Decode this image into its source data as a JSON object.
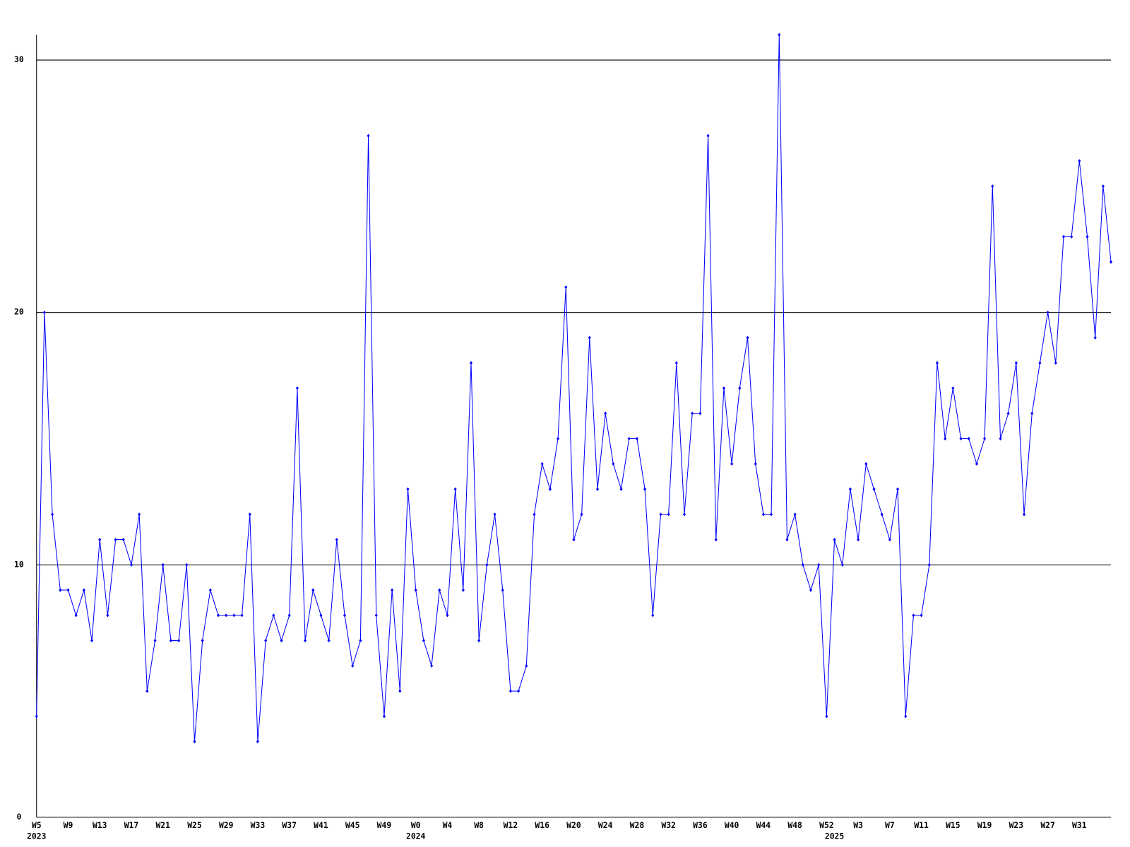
{
  "chart_data": {
    "type": "line",
    "categories": [
      "W5",
      null,
      null,
      null,
      "W9",
      null,
      null,
      null,
      "W13",
      null,
      null,
      null,
      "W17",
      null,
      null,
      null,
      "W21",
      null,
      null,
      null,
      "W25",
      null,
      null,
      null,
      "W29",
      null,
      null,
      null,
      "W33",
      null,
      null,
      null,
      "W37",
      null,
      null,
      null,
      "W41",
      null,
      null,
      null,
      "W45",
      null,
      null,
      null,
      "W49",
      null,
      null,
      null,
      "W0",
      null,
      null,
      null,
      "W4",
      null,
      null,
      null,
      "W8",
      null,
      null,
      null,
      "W12",
      null,
      null,
      null,
      "W16",
      null,
      null,
      null,
      "W20",
      null,
      null,
      null,
      "W24",
      null,
      null,
      null,
      "W28",
      null,
      null,
      null,
      "W32",
      null,
      null,
      null,
      "W36",
      null,
      null,
      null,
      "W40",
      null,
      null,
      null,
      "W44",
      null,
      null,
      null,
      "W48",
      null,
      null,
      null,
      "W52",
      null,
      null,
      null,
      "W3",
      null,
      null,
      null,
      "W7",
      null,
      null,
      null,
      "W11",
      null,
      null,
      null,
      "W15",
      null,
      null,
      null,
      "W19",
      null,
      null,
      null,
      "W23",
      null,
      null,
      null,
      "W27",
      null,
      null,
      null,
      "W31",
      null,
      null,
      null,
      null
    ],
    "years": [
      "2023",
      null,
      null,
      null,
      null,
      null,
      null,
      null,
      null,
      null,
      null,
      null,
      null,
      null,
      null,
      null,
      null,
      null,
      null,
      null,
      null,
      null,
      null,
      null,
      null,
      null,
      null,
      null,
      null,
      null,
      null,
      null,
      null,
      null,
      null,
      null,
      null,
      null,
      null,
      null,
      null,
      null,
      null,
      null,
      null,
      null,
      null,
      null,
      "2024",
      null,
      null,
      null,
      null,
      null,
      null,
      null,
      null,
      null,
      null,
      null,
      null,
      null,
      null,
      null,
      null,
      null,
      null,
      null,
      null,
      null,
      null,
      null,
      null,
      null,
      null,
      null,
      null,
      null,
      null,
      null,
      null,
      null,
      null,
      null,
      null,
      null,
      null,
      null,
      null,
      null,
      null,
      null,
      null,
      null,
      null,
      null,
      null,
      null,
      null,
      null,
      null,
      "2025",
      null,
      null,
      null,
      null,
      null,
      null,
      null,
      null,
      null,
      null,
      null,
      null,
      null,
      null,
      null,
      null,
      null,
      null,
      null,
      null,
      null,
      null,
      null,
      null,
      null,
      null,
      null,
      null,
      null,
      null,
      null,
      null,
      null,
      null,
      null
    ],
    "values": [
      4,
      20,
      12,
      9,
      9,
      8,
      9,
      7,
      11,
      8,
      11,
      11,
      10,
      12,
      5,
      7,
      10,
      7,
      7,
      10,
      3,
      7,
      9,
      8,
      8,
      8,
      8,
      12,
      3,
      7,
      8,
      7,
      8,
      17,
      7,
      9,
      8,
      7,
      11,
      8,
      6,
      7,
      27,
      8,
      4,
      9,
      5,
      13,
      9,
      7,
      6,
      9,
      8,
      13,
      9,
      18,
      7,
      10,
      12,
      9,
      5,
      5,
      6,
      12,
      14,
      13,
      15,
      21,
      11,
      12,
      19,
      13,
      16,
      14,
      13,
      15,
      15,
      13,
      8,
      12,
      12,
      18,
      12,
      16,
      16,
      27,
      11,
      17,
      14,
      17,
      19,
      14,
      12,
      12,
      31,
      11,
      12,
      10,
      9,
      10,
      4,
      11,
      10,
      13,
      11,
      14,
      13,
      12,
      11,
      13,
      4,
      8,
      8,
      10,
      18,
      15,
      17,
      15,
      15,
      14,
      15,
      25,
      15,
      16,
      18,
      12,
      16,
      18,
      20,
      18,
      23,
      23,
      26,
      23,
      19,
      25,
      22
    ],
    "color": "#0000ff",
    "ylim": [
      0,
      31
    ],
    "yticks": [
      0,
      10,
      20,
      30
    ],
    "grid": true
  }
}
